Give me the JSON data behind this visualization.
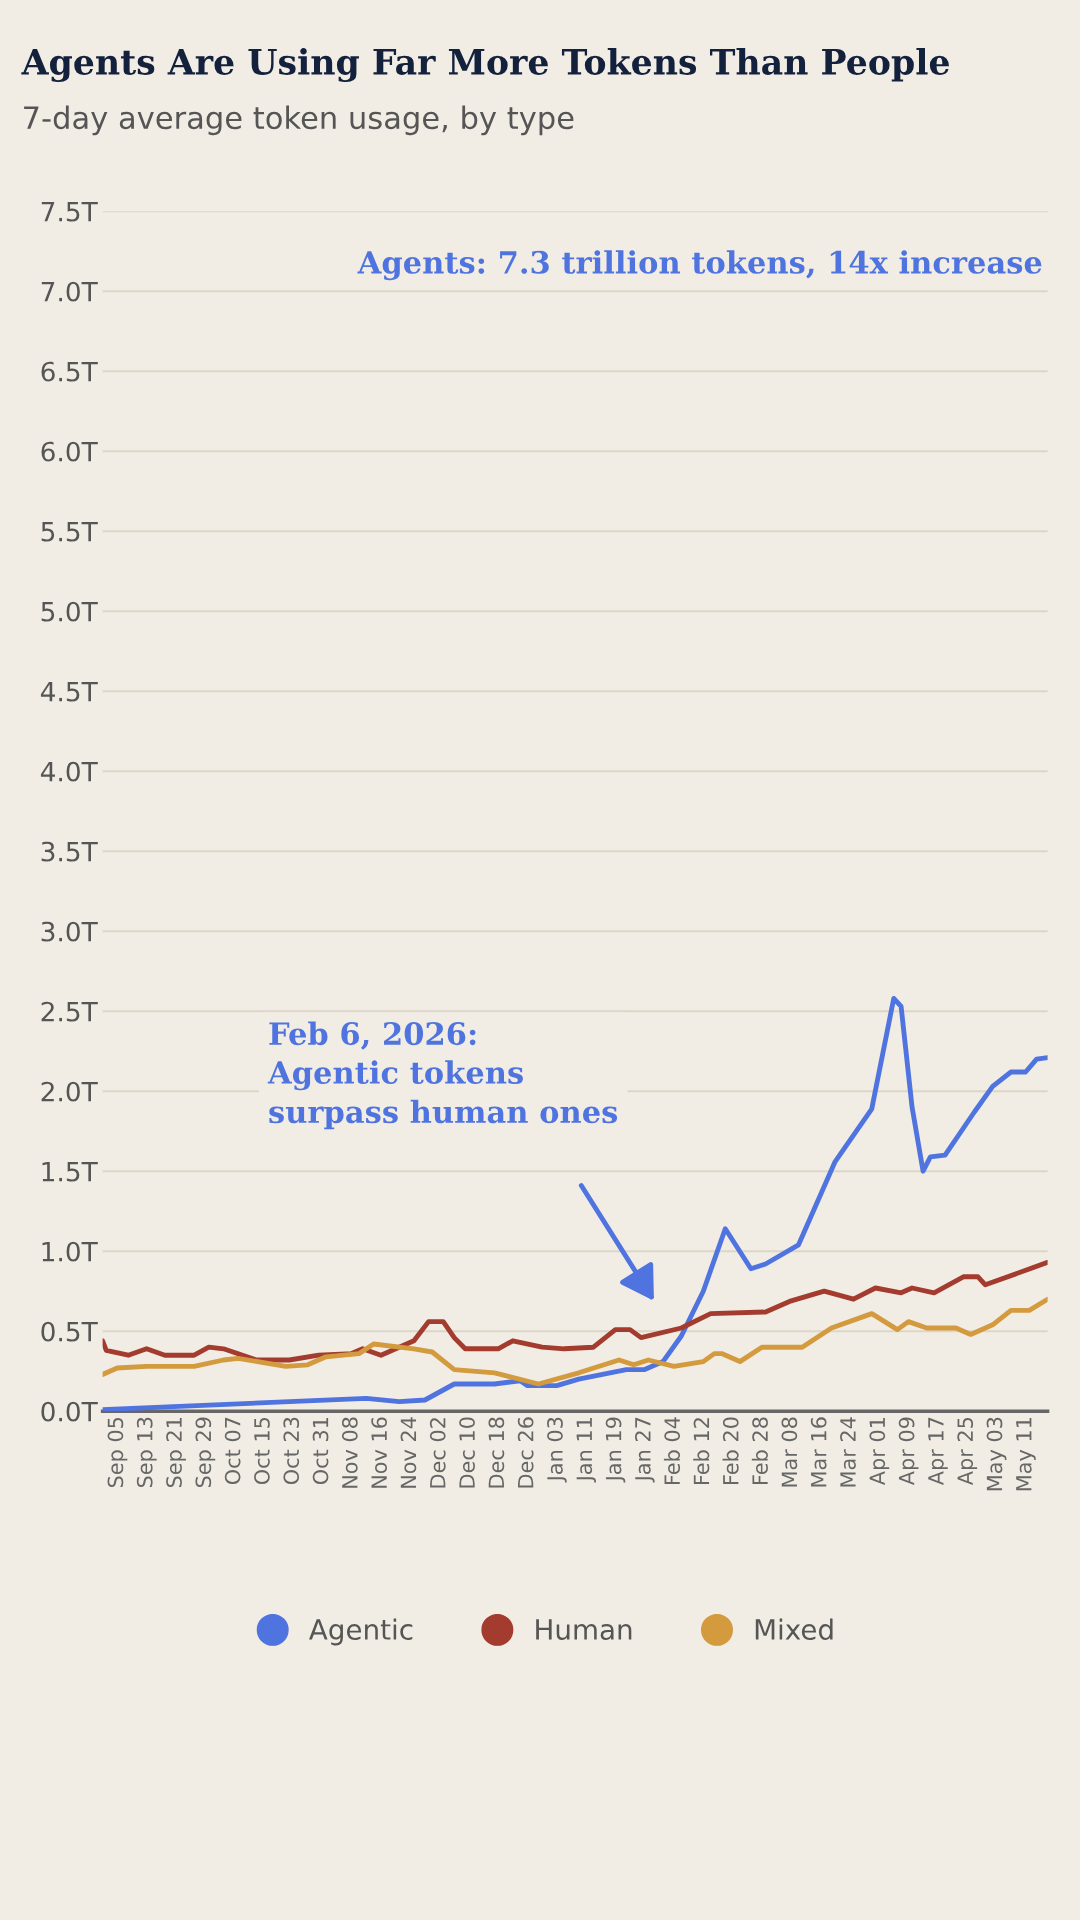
{
  "chart_data": {
    "type": "line",
    "title": "Agents Are Using Far More Tokens Than People",
    "subtitle": "7-day average token usage, by type",
    "ylim": [
      0,
      7.5
    ],
    "yticks": [
      {
        "value": 0,
        "label": "0.0T"
      },
      {
        "value": 0.5,
        "label": "0.5T"
      },
      {
        "value": 1,
        "label": "1.0T"
      },
      {
        "value": 1.5,
        "label": "1.5T"
      },
      {
        "value": 2,
        "label": "2.0T"
      },
      {
        "value": 2.5,
        "label": "2.5T"
      },
      {
        "value": 3,
        "label": "3.0T"
      },
      {
        "value": 3.5,
        "label": "3.5T"
      },
      {
        "value": 4,
        "label": "4.0T"
      },
      {
        "value": 4.5,
        "label": "4.5T"
      },
      {
        "value": 5,
        "label": "5.0T"
      },
      {
        "value": 5.5,
        "label": "5.5T"
      },
      {
        "value": 6,
        "label": "6.0T"
      },
      {
        "value": 6.5,
        "label": "6.5T"
      },
      {
        "value": 7,
        "label": "7.0T"
      },
      {
        "value": 7.5,
        "label": "7.5T"
      }
    ],
    "xlim": [
      "2025-09-01",
      "2026-05-17"
    ],
    "xticks": [
      {
        "value": "2025-09-05",
        "label": "Sep 05"
      },
      {
        "value": "2025-09-13",
        "label": "Sep 13"
      },
      {
        "value": "2025-09-21",
        "label": "Sep 21"
      },
      {
        "value": "2025-09-29",
        "label": "Sep 29"
      },
      {
        "value": "2025-10-07",
        "label": "Oct 07"
      },
      {
        "value": "2025-10-15",
        "label": "Oct 15"
      },
      {
        "value": "2025-10-23",
        "label": "Oct 23"
      },
      {
        "value": "2025-10-31",
        "label": "Oct 31"
      },
      {
        "value": "2025-11-08",
        "label": "Nov 08"
      },
      {
        "value": "2025-11-16",
        "label": "Nov 16"
      },
      {
        "value": "2025-11-24",
        "label": "Nov 24"
      },
      {
        "value": "2025-12-02",
        "label": "Dec 02"
      },
      {
        "value": "2025-12-10",
        "label": "Dec 10"
      },
      {
        "value": "2025-12-18",
        "label": "Dec 18"
      },
      {
        "value": "2025-12-26",
        "label": "Dec 26"
      },
      {
        "value": "2026-01-03",
        "label": "Jan 03"
      },
      {
        "value": "2026-01-11",
        "label": "Jan 11"
      },
      {
        "value": "2026-01-19",
        "label": "Jan 19"
      },
      {
        "value": "2026-01-27",
        "label": "Jan 27"
      },
      {
        "value": "2026-02-04",
        "label": "Feb 04"
      },
      {
        "value": "2026-02-12",
        "label": "Feb 12"
      },
      {
        "value": "2026-02-20",
        "label": "Feb 20"
      },
      {
        "value": "2026-02-28",
        "label": "Feb 28"
      },
      {
        "value": "2026-03-08",
        "label": "Mar 08"
      },
      {
        "value": "2026-03-16",
        "label": "Mar 16"
      },
      {
        "value": "2026-03-24",
        "label": "Mar 24"
      },
      {
        "value": "2026-04-01",
        "label": "Apr 01"
      },
      {
        "value": "2026-04-09",
        "label": "Apr 09"
      },
      {
        "value": "2026-04-17",
        "label": "Apr 17"
      },
      {
        "value": "2026-04-25",
        "label": "Apr 25"
      },
      {
        "value": "2026-05-03",
        "label": "May 03"
      },
      {
        "value": "2026-05-11",
        "label": "May 11"
      }
    ],
    "grid": "y",
    "legend": "bottom",
    "series": [
      {
        "name": "Agentic",
        "color": "#4f74e0",
        "x": [
          "2025-09-01",
          "2025-11-12",
          "2025-11-21",
          "2025-11-28",
          "2025-12-06",
          "2025-12-17",
          "2025-12-24",
          "2025-12-26",
          "2026-01-03",
          "2026-01-09",
          "2026-01-22",
          "2026-01-27",
          "2026-02-01",
          "2026-02-06",
          "2026-02-12",
          "2026-02-18",
          "2026-02-25",
          "2026-03-01",
          "2026-03-10",
          "2026-03-20",
          "2026-03-30",
          "2026-04-05",
          "2026-04-07",
          "2026-04-10",
          "2026-04-13",
          "2026-04-15",
          "2026-04-19",
          "2026-04-27",
          "2026-05-02",
          "2026-05-07",
          "2026-05-11",
          "2026-05-14",
          "2026-05-17"
        ],
        "values": [
          0.01,
          0.08,
          0.06,
          0.07,
          0.17,
          0.17,
          0.19,
          0.16,
          0.16,
          0.2,
          0.26,
          0.26,
          0.31,
          0.47,
          0.75,
          1.14,
          0.89,
          0.92,
          1.04,
          1.56,
          1.89,
          2.58,
          2.53,
          1.9,
          1.5,
          1.59,
          1.6,
          1.87,
          2.03,
          2.12,
          2.12,
          2.2,
          2.21
        ]
      },
      {
        "name": "Human",
        "color": "#a33b2e",
        "x": [
          "2025-09-01",
          "2025-09-02",
          "2025-09-08",
          "2025-09-13",
          "2025-09-18",
          "2025-09-26",
          "2025-09-30",
          "2025-10-04",
          "2025-10-13",
          "2025-10-22",
          "2025-10-30",
          "2025-11-08",
          "2025-11-11",
          "2025-11-16",
          "2025-11-25",
          "2025-11-29",
          "2025-12-03",
          "2025-12-06",
          "2025-12-09",
          "2025-12-18",
          "2025-12-22",
          "2025-12-30",
          "2026-01-05",
          "2026-01-13",
          "2026-01-19",
          "2026-01-23",
          "2026-01-26",
          "2026-02-06",
          "2026-02-14",
          "2026-03-01",
          "2026-03-08",
          "2026-03-17",
          "2026-03-25",
          "2026-03-31",
          "2026-04-07",
          "2026-04-10",
          "2026-04-16",
          "2026-04-24",
          "2026-04-28",
          "2026-04-30",
          "2026-05-17"
        ],
        "values": [
          0.44,
          0.38,
          0.35,
          0.39,
          0.35,
          0.35,
          0.4,
          0.39,
          0.32,
          0.32,
          0.35,
          0.36,
          0.39,
          0.35,
          0.44,
          0.56,
          0.56,
          0.46,
          0.39,
          0.39,
          0.44,
          0.4,
          0.39,
          0.4,
          0.51,
          0.51,
          0.46,
          0.52,
          0.61,
          0.62,
          0.69,
          0.75,
          0.7,
          0.77,
          0.74,
          0.77,
          0.74,
          0.84,
          0.84,
          0.79,
          0.93
        ]
      },
      {
        "name": "Mixed",
        "color": "#d39a3e",
        "x": [
          "2025-09-01",
          "2025-09-05",
          "2025-09-13",
          "2025-09-26",
          "2025-10-04",
          "2025-10-08",
          "2025-10-21",
          "2025-10-27",
          "2025-11-01",
          "2025-11-10",
          "2025-11-14",
          "2025-11-25",
          "2025-11-30",
          "2025-12-06",
          "2025-12-17",
          "2025-12-29",
          "2026-01-09",
          "2026-01-20",
          "2026-01-24",
          "2026-01-28",
          "2026-02-04",
          "2026-02-12",
          "2026-02-15",
          "2026-02-17",
          "2026-02-22",
          "2026-02-28",
          "2026-03-11",
          "2026-03-19",
          "2026-03-30",
          "2026-04-06",
          "2026-04-09",
          "2026-04-14",
          "2026-04-22",
          "2026-04-26",
          "2026-05-02",
          "2026-05-07",
          "2026-05-12",
          "2026-05-17"
        ],
        "values": [
          0.23,
          0.27,
          0.28,
          0.28,
          0.32,
          0.33,
          0.28,
          0.29,
          0.34,
          0.36,
          0.42,
          0.39,
          0.37,
          0.26,
          0.24,
          0.17,
          0.24,
          0.32,
          0.29,
          0.32,
          0.28,
          0.31,
          0.36,
          0.36,
          0.31,
          0.4,
          0.4,
          0.52,
          0.61,
          0.51,
          0.56,
          0.52,
          0.52,
          0.48,
          0.54,
          0.63,
          0.63,
          0.7
        ]
      }
    ],
    "annotations": [
      "Agents: 7.3 trillion tokens, 14x increase",
      "Feb 6, 2026:\nAgentic tokens\nsurpass human ones"
    ]
  }
}
